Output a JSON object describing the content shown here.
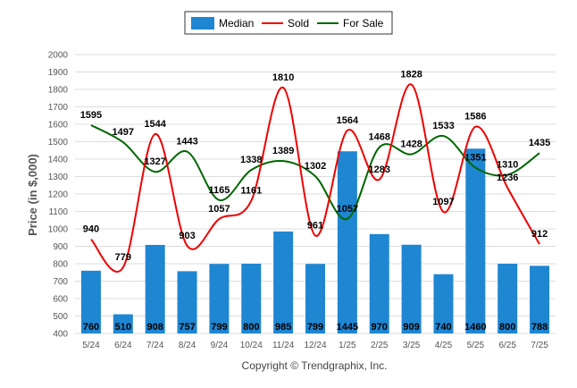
{
  "chart_data": {
    "type": "bar",
    "categories": [
      "5/24",
      "6/24",
      "7/24",
      "8/24",
      "9/24",
      "10/24",
      "11/24",
      "12/24",
      "1/25",
      "2/25",
      "3/25",
      "4/25",
      "5/25",
      "6/25",
      "7/25"
    ],
    "series": [
      {
        "name": "Median",
        "type": "bar",
        "color": "#1f86d2",
        "values": [
          760,
          510,
          908,
          757,
          799,
          800,
          985,
          799,
          1445,
          970,
          909,
          740,
          1460,
          800,
          788
        ]
      },
      {
        "name": "Sold",
        "type": "line",
        "color": "#ee0000",
        "values": [
          940,
          779,
          1544,
          903,
          1057,
          1161,
          1810,
          961,
          1564,
          1283,
          1828,
          1097,
          1586,
          1236,
          912
        ]
      },
      {
        "name": "For Sale",
        "type": "line",
        "color": "#006600",
        "values": [
          1595,
          1497,
          1327,
          1443,
          1165,
          1338,
          1389,
          1302,
          1057,
          1468,
          1428,
          1533,
          1351,
          1310,
          1435
        ]
      }
    ],
    "ylabel": "Price (in $,000)",
    "xlabel": "",
    "ylim": [
      400,
      2000
    ],
    "yticks": [
      400,
      500,
      600,
      700,
      800,
      900,
      1000,
      1100,
      1200,
      1300,
      1400,
      1500,
      1600,
      1700,
      1800,
      1900,
      2000
    ],
    "grid": true,
    "legend": "top-center"
  },
  "footer": {
    "copyright": "Copyright © Trendgraphix, Inc."
  }
}
